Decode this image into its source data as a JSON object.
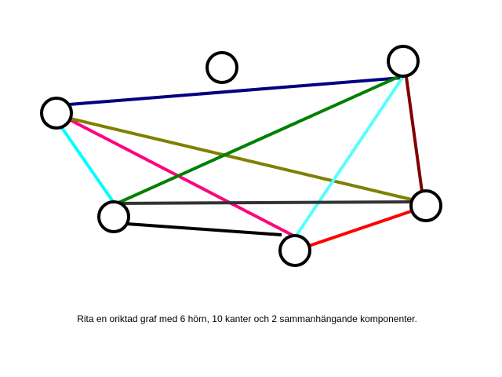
{
  "caption": "Rita en oriktad graf med 6 hörn, 10 kanter och 2 sammanhängande komponenter.",
  "graph": {
    "vertex_fill": "#ffffff",
    "vertex_stroke": "#000000",
    "vertices": [
      {
        "id": "v1"
      },
      {
        "id": "v2"
      },
      {
        "id": "v3"
      },
      {
        "id": "v4"
      },
      {
        "id": "v5"
      },
      {
        "id": "v6"
      }
    ],
    "edges": [
      {
        "from": "v1",
        "to": "v3",
        "color": "#000080"
      },
      {
        "from": "v1",
        "to": "v4",
        "color": "#00ffff"
      },
      {
        "from": "v1",
        "to": "v5",
        "color": "#ff0080"
      },
      {
        "from": "v1",
        "to": "v6",
        "color": "#808000"
      },
      {
        "from": "v3",
        "to": "v4",
        "color": "#008000"
      },
      {
        "from": "v3",
        "to": "v5",
        "color": "#55ffff"
      },
      {
        "from": "v3",
        "to": "v6",
        "color": "#800000"
      },
      {
        "from": "v4",
        "to": "v6",
        "color": "#333333"
      },
      {
        "from": "v4",
        "to": "v5",
        "color": "#000000"
      },
      {
        "from": "v5",
        "to": "v6",
        "color": "#ff0000"
      }
    ]
  }
}
